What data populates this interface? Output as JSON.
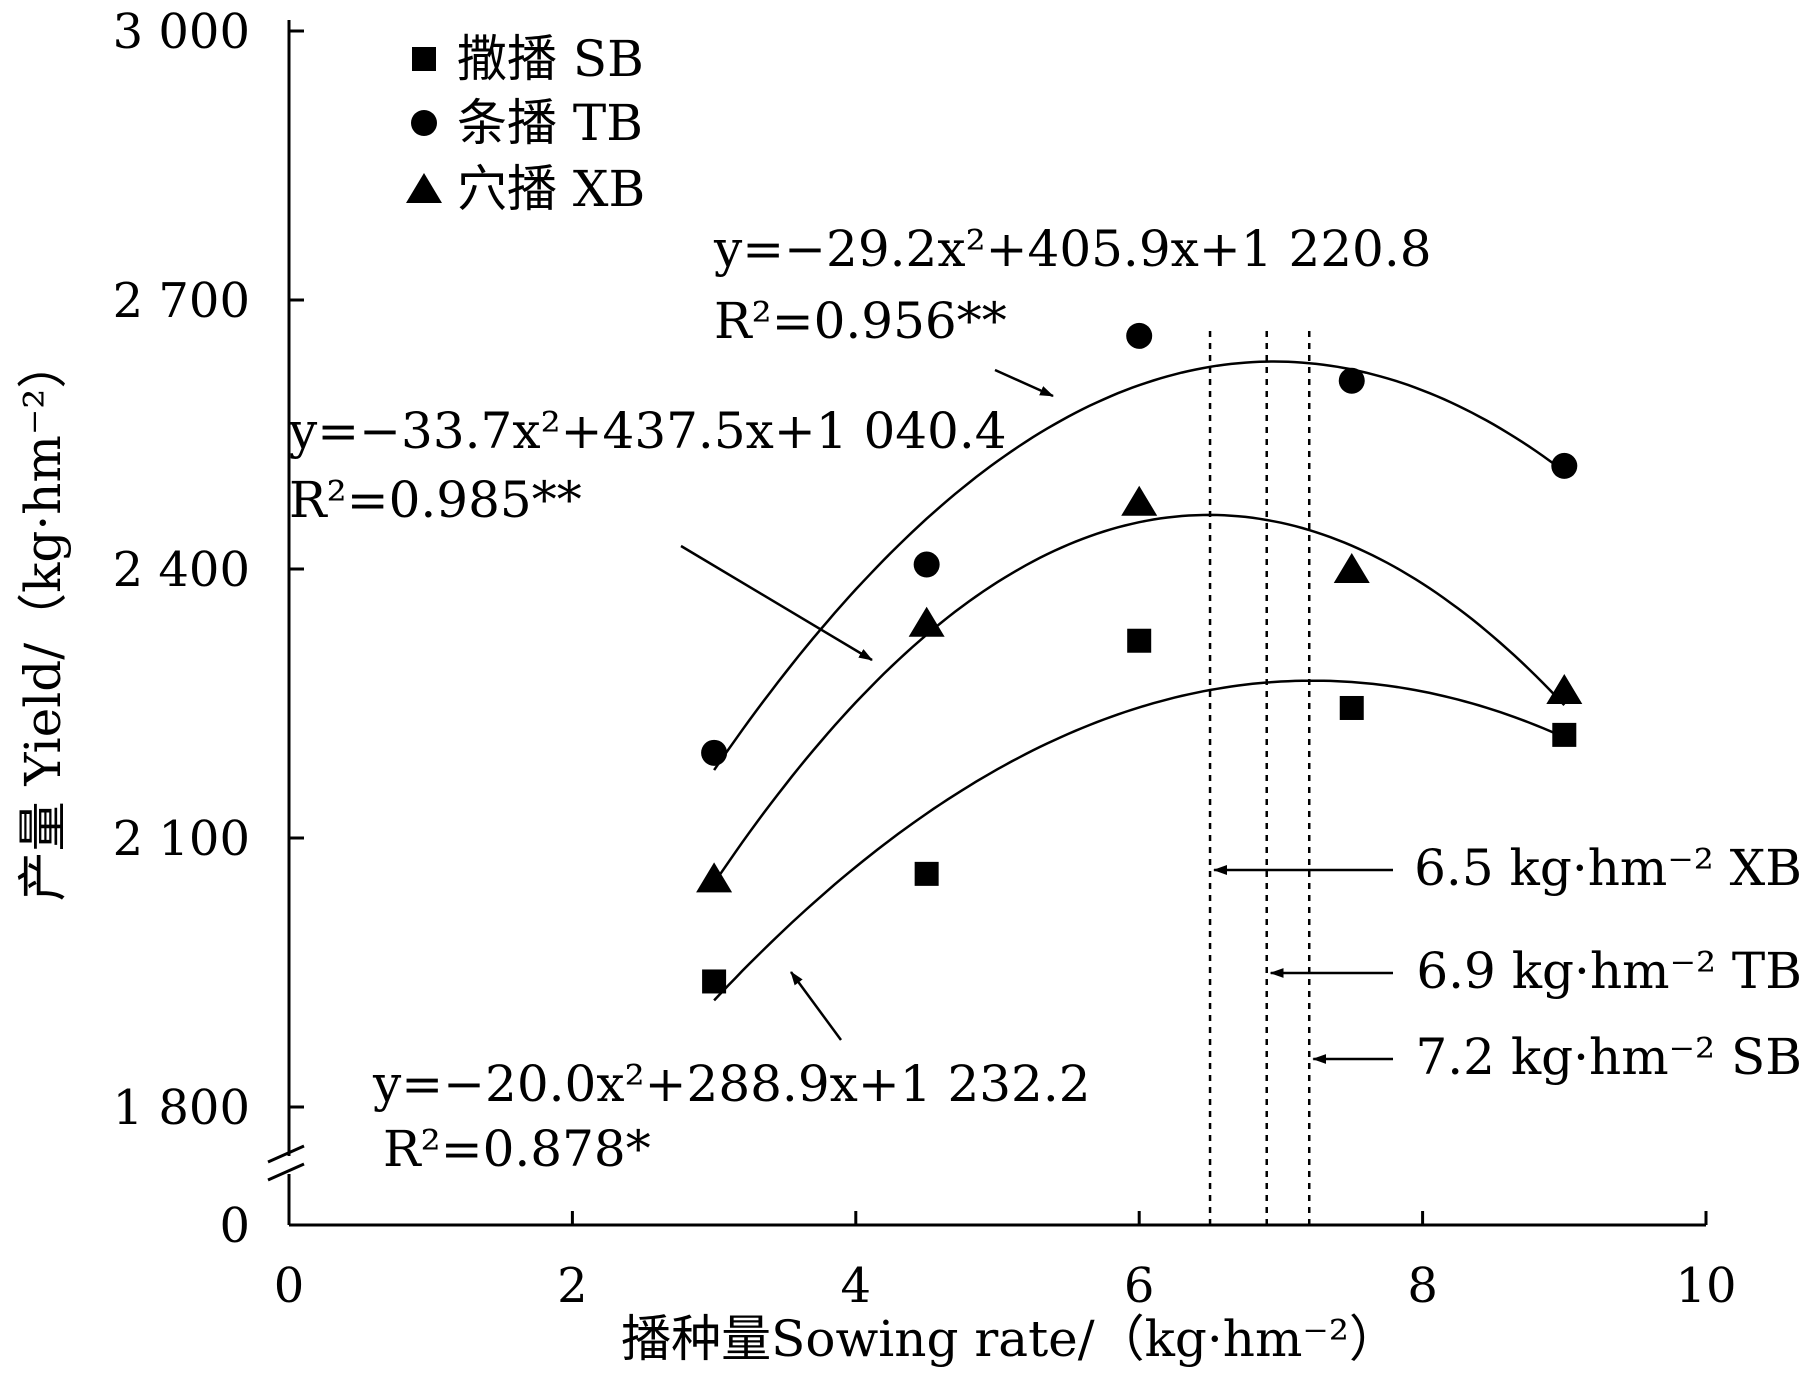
{
  "chart_data": {
    "type": "scatter",
    "xlabel": "播种量Sowing rate/（kg·hm⁻²）",
    "ylabel": "产量 Yield/（kg·hm⁻²）",
    "xlim": [
      0,
      10
    ],
    "ylim_display": [
      1800,
      3000
    ],
    "y_axis_break": true,
    "y_axis_break_label": "0",
    "xticks": [
      0,
      2,
      4,
      6,
      8,
      10
    ],
    "xtick_labels": [
      "0",
      "2",
      "4",
      "6",
      "8",
      "10"
    ],
    "yticks": [
      1800,
      2100,
      2400,
      2700,
      3000
    ],
    "ytick_labels": [
      "1 800",
      "2 100",
      "2 400",
      "2 700",
      "3 000"
    ],
    "grid": false,
    "legend_placement": "top-left",
    "series": [
      {
        "name": "撒播  SB",
        "marker": "square",
        "x": [
          3,
          4.5,
          6,
          7.5,
          9
        ],
        "y": [
          1940,
          2060,
          2320,
          2245,
          2215
        ],
        "fit": {
          "a": -20.0,
          "b": 288.9,
          "c": 1232.2
        },
        "equation": "y=−20.0x²+288.9x+1 232.2",
        "r2": "R²=0.878*",
        "optimum_x": 7.2,
        "optimum_label": "7.2 kg·hm⁻² SB"
      },
      {
        "name": "条播  TB",
        "marker": "circle",
        "x": [
          3,
          4.5,
          6,
          7.5,
          9
        ],
        "y": [
          2195,
          2405,
          2660,
          2610,
          2515
        ],
        "fit": {
          "a": -29.2,
          "b": 405.9,
          "c": 1220.8
        },
        "equation": "y=−29.2x²+405.9x+1 220.8",
        "r2": "R²=0.956**",
        "optimum_x": 6.9,
        "optimum_label": "6.9 kg·hm⁻² TB"
      },
      {
        "name": "穴播  XB",
        "marker": "triangle",
        "x": [
          3,
          4.5,
          6,
          7.5,
          9
        ],
        "y": [
          2055,
          2340,
          2475,
          2400,
          2265
        ],
        "fit": {
          "a": -33.7,
          "b": 437.5,
          "c": 1040.4
        },
        "equation": "y=−33.7x²+437.5x+1 040.4",
        "r2": "R²=0.985**",
        "optimum_x": 6.5,
        "optimum_label": "6.5 kg·hm⁻² XB"
      }
    ]
  }
}
